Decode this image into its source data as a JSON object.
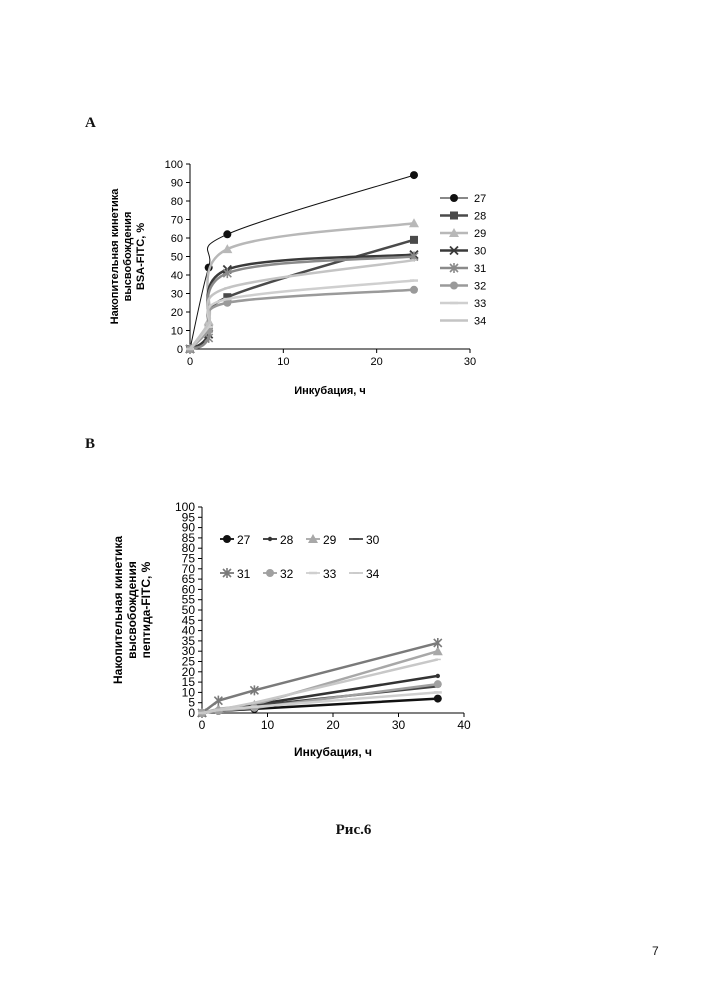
{
  "panels": {
    "a_letter": "A",
    "b_letter": "B"
  },
  "caption": "Рис.6",
  "page_number": "7",
  "chart_data": [
    {
      "type": "line",
      "xlabel": "Инкубация, ч",
      "ylabel_lines": [
        "Накопительная кинетика",
        "высвобождения",
        "BSA-FITC, %"
      ],
      "xlim": [
        0,
        30
      ],
      "ylim": [
        0,
        100
      ],
      "xticks": [
        0,
        10,
        20,
        30
      ],
      "yticks": [
        0,
        10,
        20,
        30,
        40,
        50,
        60,
        70,
        80,
        90,
        100
      ],
      "grid": false,
      "legend_position": "right",
      "series": [
        {
          "name": "27",
          "color": "#111111",
          "marker": "circle",
          "x": [
            0,
            2,
            4,
            24
          ],
          "y": [
            0,
            44,
            62,
            94
          ]
        },
        {
          "name": "28",
          "color": "#4a4a4a",
          "marker": "square",
          "x": [
            0,
            2,
            4,
            24
          ],
          "y": [
            0,
            11,
            28,
            59
          ]
        },
        {
          "name": "29",
          "color": "#b8b8b8",
          "marker": "triangle",
          "x": [
            0,
            2,
            4,
            24
          ],
          "y": [
            0,
            15,
            54,
            68
          ]
        },
        {
          "name": "30",
          "color": "#3a3a3a",
          "marker": "x",
          "x": [
            0,
            2,
            4,
            24
          ],
          "y": [
            0,
            8,
            43,
            51
          ]
        },
        {
          "name": "31",
          "color": "#8a8a8a",
          "marker": "star",
          "x": [
            0,
            2,
            4,
            24
          ],
          "y": [
            0,
            6,
            41,
            50
          ]
        },
        {
          "name": "32",
          "color": "#9a9a9a",
          "marker": "circle",
          "x": [
            0,
            2,
            4,
            24
          ],
          "y": [
            0,
            10,
            25,
            32
          ]
        },
        {
          "name": "33",
          "color": "#cfcfcf",
          "marker": "dash",
          "x": [
            0,
            2,
            4,
            24
          ],
          "y": [
            0,
            12,
            27,
            37
          ]
        },
        {
          "name": "34",
          "color": "#c4c4c4",
          "marker": "line",
          "x": [
            0,
            2,
            4,
            24
          ],
          "y": [
            0,
            14,
            33,
            48
          ]
        }
      ]
    },
    {
      "type": "line",
      "xlabel": "Инкубация, ч",
      "ylabel_lines": [
        "Накопительная кинетика",
        "высвобождения",
        "пептида-FITC, %"
      ],
      "xlim": [
        0,
        40
      ],
      "ylim": [
        0,
        100
      ],
      "xticks": [
        0,
        10,
        20,
        30,
        40
      ],
      "yticks": [
        0,
        5,
        10,
        15,
        20,
        25,
        30,
        35,
        40,
        45,
        50,
        55,
        60,
        65,
        70,
        75,
        80,
        85,
        90,
        95,
        100
      ],
      "grid": false,
      "legend_position": "top",
      "series": [
        {
          "name": "27",
          "color": "#111111",
          "marker": "circle",
          "x": [
            0,
            2.5,
            8,
            36
          ],
          "y": [
            0,
            1,
            2,
            7
          ]
        },
        {
          "name": "28",
          "color": "#333333",
          "marker": "small-circle",
          "x": [
            0,
            2.5,
            8,
            36
          ],
          "y": [
            0,
            1.5,
            4,
            18
          ]
        },
        {
          "name": "29",
          "color": "#a8a8a8",
          "marker": "triangle",
          "x": [
            0,
            2.5,
            8,
            36
          ],
          "y": [
            0,
            2,
            4,
            30
          ]
        },
        {
          "name": "30",
          "color": "#444444",
          "marker": "line",
          "x": [
            0,
            2.5,
            8,
            36
          ],
          "y": [
            0,
            1.5,
            3.5,
            13
          ]
        },
        {
          "name": "31",
          "color": "#7a7a7a",
          "marker": "star",
          "x": [
            0,
            2.5,
            8,
            36
          ],
          "y": [
            0,
            6,
            11,
            34
          ]
        },
        {
          "name": "32",
          "color": "#a0a0a0",
          "marker": "circle",
          "x": [
            0,
            2.5,
            8,
            36
          ],
          "y": [
            0,
            1,
            2.5,
            14
          ]
        },
        {
          "name": "33",
          "color": "#cfcfcf",
          "marker": "dash",
          "x": [
            0,
            2.5,
            8,
            36
          ],
          "y": [
            0,
            1.5,
            3,
            10
          ]
        },
        {
          "name": "34",
          "color": "#c8c8c8",
          "marker": "line",
          "x": [
            0,
            2.5,
            8,
            36
          ],
          "y": [
            0,
            1.5,
            5,
            26
          ]
        }
      ]
    }
  ]
}
